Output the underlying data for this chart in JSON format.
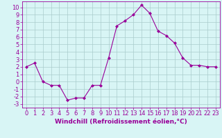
{
  "x": [
    0,
    1,
    2,
    3,
    4,
    5,
    6,
    7,
    8,
    9,
    10,
    11,
    12,
    13,
    14,
    15,
    16,
    17,
    18,
    19,
    20,
    21,
    22,
    23
  ],
  "y": [
    2,
    2.5,
    0,
    -0.5,
    -0.5,
    -2.5,
    -2.2,
    -2.2,
    -0.5,
    -0.5,
    3.2,
    7.5,
    8.2,
    9.0,
    10.3,
    9.2,
    6.8,
    6.2,
    5.2,
    3.2,
    2.2,
    2.2,
    2.0,
    2.0
  ],
  "line_color": "#990099",
  "marker": "D",
  "marker_size": 2,
  "bg_color": "#d8f5f5",
  "grid_color": "#aacccc",
  "axis_color": "#990099",
  "xlabel": "Windchill (Refroidissement éolien,°C)",
  "xlim": [
    -0.5,
    23.5
  ],
  "ylim": [
    -3.5,
    10.8
  ],
  "xticks": [
    0,
    1,
    2,
    3,
    4,
    5,
    6,
    7,
    8,
    9,
    10,
    11,
    12,
    13,
    14,
    15,
    16,
    17,
    18,
    19,
    20,
    21,
    22,
    23
  ],
  "yticks": [
    -3,
    -2,
    -1,
    0,
    1,
    2,
    3,
    4,
    5,
    6,
    7,
    8,
    9,
    10
  ],
  "xlabel_fontsize": 6.5,
  "tick_fontsize": 6.0
}
